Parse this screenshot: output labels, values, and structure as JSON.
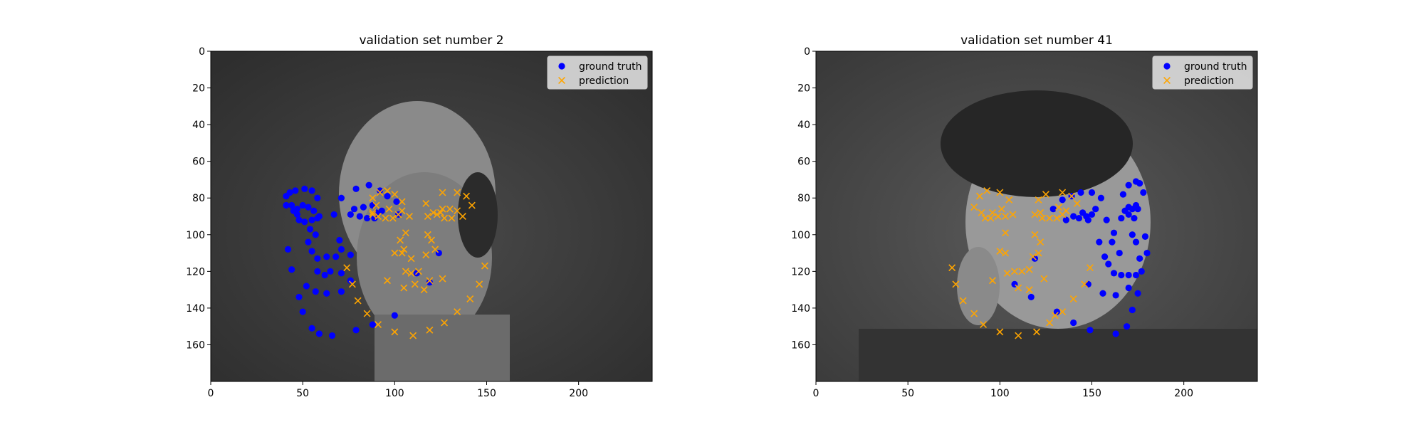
{
  "figure": {
    "background": "#ffffff",
    "colors": {
      "ground_truth": "#0000ff",
      "prediction": "#ffa500"
    }
  },
  "chart_data": [
    {
      "type": "scatter",
      "title": "validation set number 2",
      "background_image": "grayscale photo of a bald man facing slightly to the right",
      "xlim": [
        0,
        240
      ],
      "ylim": [
        180,
        0
      ],
      "y_inverted": true,
      "xticks": [
        0,
        50,
        100,
        150,
        200
      ],
      "yticks": [
        0,
        20,
        40,
        60,
        80,
        100,
        120,
        140,
        160
      ],
      "legend": {
        "location": "upper right",
        "entries": [
          "ground truth",
          "prediction"
        ]
      },
      "series": [
        {
          "name": "ground truth",
          "marker": "circle",
          "color": "#0000ff",
          "points": [
            [
              41,
              79
            ],
            [
              43,
              77
            ],
            [
              46,
              76
            ],
            [
              51,
              75
            ],
            [
              55,
              76
            ],
            [
              58,
              80
            ],
            [
              44,
              84
            ],
            [
              47,
              86
            ],
            [
              50,
              84
            ],
            [
              53,
              85
            ],
            [
              56,
              87
            ],
            [
              47,
              89
            ],
            [
              48,
              92
            ],
            [
              51,
              93
            ],
            [
              55,
              92
            ],
            [
              58,
              91
            ],
            [
              54,
              97
            ],
            [
              59,
              90
            ],
            [
              41,
              84
            ],
            [
              45,
              87
            ],
            [
              57,
              100
            ],
            [
              53,
              104
            ],
            [
              55,
              109
            ],
            [
              58,
              113
            ],
            [
              63,
              112
            ],
            [
              68,
              112
            ],
            [
              70,
              103
            ],
            [
              71,
              108
            ],
            [
              76,
              111
            ],
            [
              67,
              89
            ],
            [
              71,
              80
            ],
            [
              79,
              75
            ],
            [
              86,
              73
            ],
            [
              92,
              76
            ],
            [
              96,
              79
            ],
            [
              78,
              86
            ],
            [
              81,
              90
            ],
            [
              85,
              91
            ],
            [
              89,
              91
            ],
            [
              93,
              87
            ],
            [
              101,
              82
            ],
            [
              102,
              89
            ],
            [
              76,
              89
            ],
            [
              83,
              85
            ],
            [
              88,
              84
            ],
            [
              90,
              88
            ],
            [
              58,
              120
            ],
            [
              62,
              122
            ],
            [
              65,
              120
            ],
            [
              71,
              121
            ],
            [
              76,
              125
            ],
            [
              71,
              131
            ],
            [
              63,
              132
            ],
            [
              57,
              131
            ],
            [
              52,
              128
            ],
            [
              42,
              108
            ],
            [
              44,
              119
            ],
            [
              48,
              134
            ],
            [
              50,
              142
            ],
            [
              55,
              151
            ],
            [
              59,
              154
            ],
            [
              66,
              155
            ],
            [
              79,
              152
            ],
            [
              88,
              149
            ],
            [
              100,
              144
            ],
            [
              119,
              126
            ],
            [
              124,
              110
            ],
            [
              112,
              121
            ]
          ]
        },
        {
          "name": "prediction",
          "marker": "x",
          "color": "#ffa500",
          "points": [
            [
              88,
              80
            ],
            [
              92,
              77
            ],
            [
              96,
              76
            ],
            [
              100,
              78
            ],
            [
              104,
              82
            ],
            [
              90,
              84
            ],
            [
              88,
              88
            ],
            [
              91,
              90
            ],
            [
              95,
              91
            ],
            [
              99,
              91
            ],
            [
              102,
              89
            ],
            [
              97,
              86
            ],
            [
              104,
              87
            ],
            [
              88,
              89
            ],
            [
              108,
              90
            ],
            [
              118,
              90
            ],
            [
              123,
              89
            ],
            [
              126,
              86
            ],
            [
              130,
              86
            ],
            [
              134,
              87
            ],
            [
              137,
              90
            ],
            [
              131,
              91
            ],
            [
              127,
              91
            ],
            [
              125,
              88
            ],
            [
              117,
              83
            ],
            [
              126,
              77
            ],
            [
              134,
              77
            ],
            [
              139,
              79
            ],
            [
              142,
              84
            ],
            [
              121,
              88
            ],
            [
              103,
              103
            ],
            [
              104,
              110
            ],
            [
              100,
              110
            ],
            [
              106,
              99
            ],
            [
              105,
              108
            ],
            [
              109,
              113
            ],
            [
              117,
              111
            ],
            [
              122,
              108
            ],
            [
              120,
              103
            ],
            [
              118,
              100
            ],
            [
              106,
              120
            ],
            [
              109,
              121
            ],
            [
              113,
              120
            ],
            [
              116,
              130
            ],
            [
              111,
              127
            ],
            [
              105,
              129
            ],
            [
              119,
              125
            ],
            [
              126,
              124
            ],
            [
              100,
              153
            ],
            [
              110,
              155
            ],
            [
              119,
              152
            ],
            [
              91,
              149
            ],
            [
              85,
              143
            ],
            [
              80,
              136
            ],
            [
              77,
              127
            ],
            [
              74,
              118
            ],
            [
              96,
              125
            ],
            [
              127,
              148
            ],
            [
              134,
              142
            ],
            [
              141,
              135
            ],
            [
              146,
              127
            ],
            [
              149,
              117
            ]
          ]
        }
      ]
    },
    {
      "type": "scatter",
      "title": "validation set number 41",
      "background_image": "grayscale photo of a short-haired man facing to the right",
      "xlim": [
        0,
        240
      ],
      "ylim": [
        180,
        0
      ],
      "y_inverted": true,
      "xticks": [
        0,
        50,
        100,
        150,
        200
      ],
      "yticks": [
        0,
        20,
        40,
        60,
        80,
        100,
        120,
        140,
        160
      ],
      "legend": {
        "location": "upper right",
        "entries": [
          "ground truth",
          "prediction"
        ]
      },
      "series": [
        {
          "name": "ground truth",
          "marker": "circle",
          "color": "#0000ff",
          "points": [
            [
              129,
              86
            ],
            [
              134,
              81
            ],
            [
              139,
              79
            ],
            [
              144,
              77
            ],
            [
              150,
              77
            ],
            [
              136,
              92
            ],
            [
              140,
              90
            ],
            [
              143,
              91
            ],
            [
              147,
              90
            ],
            [
              150,
              89
            ],
            [
              152,
              86
            ],
            [
              145,
              88
            ],
            [
              148,
              92
            ],
            [
              155,
              80
            ],
            [
              158,
              92
            ],
            [
              162,
              99
            ],
            [
              161,
              104
            ],
            [
              165,
              110
            ],
            [
              167,
              78
            ],
            [
              168,
              87
            ],
            [
              170,
              85
            ],
            [
              172,
              86
            ],
            [
              174,
              84
            ],
            [
              175,
              86
            ],
            [
              170,
              73
            ],
            [
              174,
              71
            ],
            [
              176,
              72
            ],
            [
              178,
              77
            ],
            [
              172,
              100
            ],
            [
              174,
              104
            ],
            [
              176,
              113
            ],
            [
              179,
              101
            ],
            [
              180,
              110
            ],
            [
              159,
              116
            ],
            [
              162,
              121
            ],
            [
              166,
              122
            ],
            [
              170,
              122
            ],
            [
              174,
              122
            ],
            [
              177,
              120
            ],
            [
              175,
              132
            ],
            [
              170,
              129
            ],
            [
              163,
              133
            ],
            [
              156,
              132
            ],
            [
              148,
              127
            ],
            [
              172,
              141
            ],
            [
              169,
              150
            ],
            [
              163,
              154
            ],
            [
              149,
              152
            ],
            [
              140,
              148
            ],
            [
              131,
              142
            ],
            [
              117,
              134
            ],
            [
              108,
              127
            ],
            [
              119,
              113
            ],
            [
              170,
              89
            ],
            [
              166,
              91
            ],
            [
              173,
              91
            ],
            [
              157,
              112
            ],
            [
              154,
              104
            ]
          ]
        },
        {
          "name": "prediction",
          "marker": "x",
          "color": "#ffa500",
          "points": [
            [
              86,
              85
            ],
            [
              89,
              79
            ],
            [
              93,
              76
            ],
            [
              100,
              77
            ],
            [
              105,
              81
            ],
            [
              90,
              88
            ],
            [
              92,
              91
            ],
            [
              95,
              91
            ],
            [
              99,
              90
            ],
            [
              101,
              86
            ],
            [
              103,
              90
            ],
            [
              96,
              88
            ],
            [
              107,
              89
            ],
            [
              119,
              89
            ],
            [
              123,
              91
            ],
            [
              127,
              91
            ],
            [
              131,
              91
            ],
            [
              134,
              89
            ],
            [
              136,
              87
            ],
            [
              132,
              85
            ],
            [
              122,
              88
            ],
            [
              121,
              81
            ],
            [
              125,
              78
            ],
            [
              134,
              77
            ],
            [
              139,
              79
            ],
            [
              142,
              83
            ],
            [
              103,
              99
            ],
            [
              103,
              110
            ],
            [
              100,
              109
            ],
            [
              104,
              121
            ],
            [
              108,
              120
            ],
            [
              112,
              120
            ],
            [
              116,
              119
            ],
            [
              118,
              112
            ],
            [
              121,
              110
            ],
            [
              122,
              104
            ],
            [
              119,
              100
            ],
            [
              124,
              124
            ],
            [
              110,
              129
            ],
            [
              116,
              130
            ],
            [
              120,
              153
            ],
            [
              110,
              155
            ],
            [
              100,
              153
            ],
            [
              91,
              149
            ],
            [
              86,
              143
            ],
            [
              80,
              136
            ],
            [
              76,
              127
            ],
            [
              74,
              118
            ],
            [
              96,
              125
            ],
            [
              127,
              148
            ],
            [
              130,
              144
            ],
            [
              134,
              142
            ],
            [
              140,
              135
            ],
            [
              146,
              127
            ],
            [
              149,
              118
            ]
          ]
        }
      ]
    }
  ]
}
